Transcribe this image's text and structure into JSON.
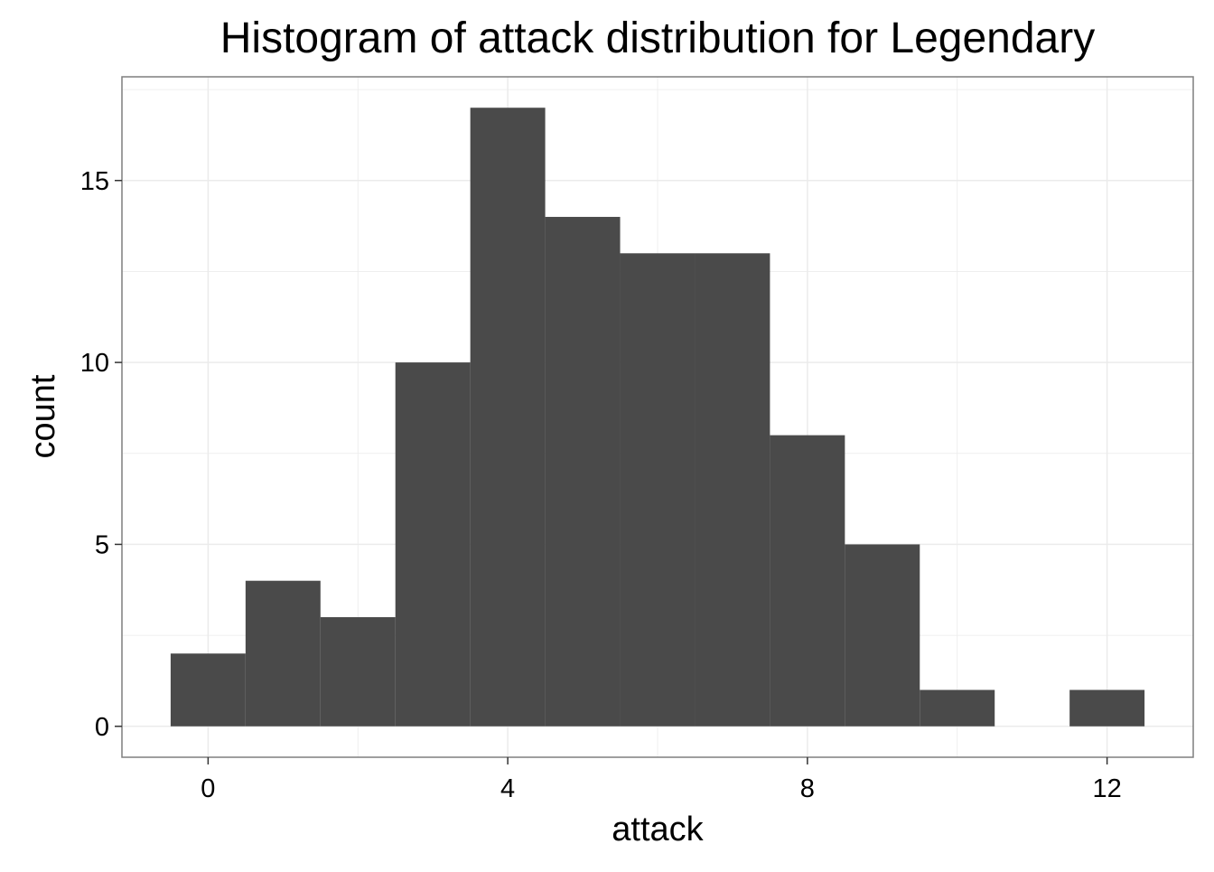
{
  "chart_data": {
    "type": "bar",
    "title": "Histogram of attack distribution for Legendary",
    "xlabel": "attack",
    "ylabel": "count",
    "bin_width": 1,
    "bins": [
      {
        "x": 0,
        "count": 2
      },
      {
        "x": 1,
        "count": 4
      },
      {
        "x": 2,
        "count": 3
      },
      {
        "x": 3,
        "count": 10
      },
      {
        "x": 4,
        "count": 17
      },
      {
        "x": 5,
        "count": 14
      },
      {
        "x": 6,
        "count": 13
      },
      {
        "x": 7,
        "count": 13
      },
      {
        "x": 8,
        "count": 8
      },
      {
        "x": 9,
        "count": 5
      },
      {
        "x": 10,
        "count": 1
      },
      {
        "x": 11,
        "count": 0
      },
      {
        "x": 12,
        "count": 1
      }
    ],
    "xlim": [
      -1.15,
      13.15
    ],
    "ylim": [
      -0.85,
      17.85
    ],
    "x_ticks": [
      0,
      4,
      8,
      12
    ],
    "x_tick_labels": [
      "0",
      "4",
      "8",
      "12"
    ],
    "y_ticks": [
      0,
      5,
      10,
      15
    ],
    "y_tick_labels": [
      "0",
      "5",
      "10",
      "15"
    ],
    "grid": true,
    "bar_color": "#4a4a4a",
    "grid_color": "#ebebeb",
    "panel_border_color": "#7f7f7f"
  }
}
